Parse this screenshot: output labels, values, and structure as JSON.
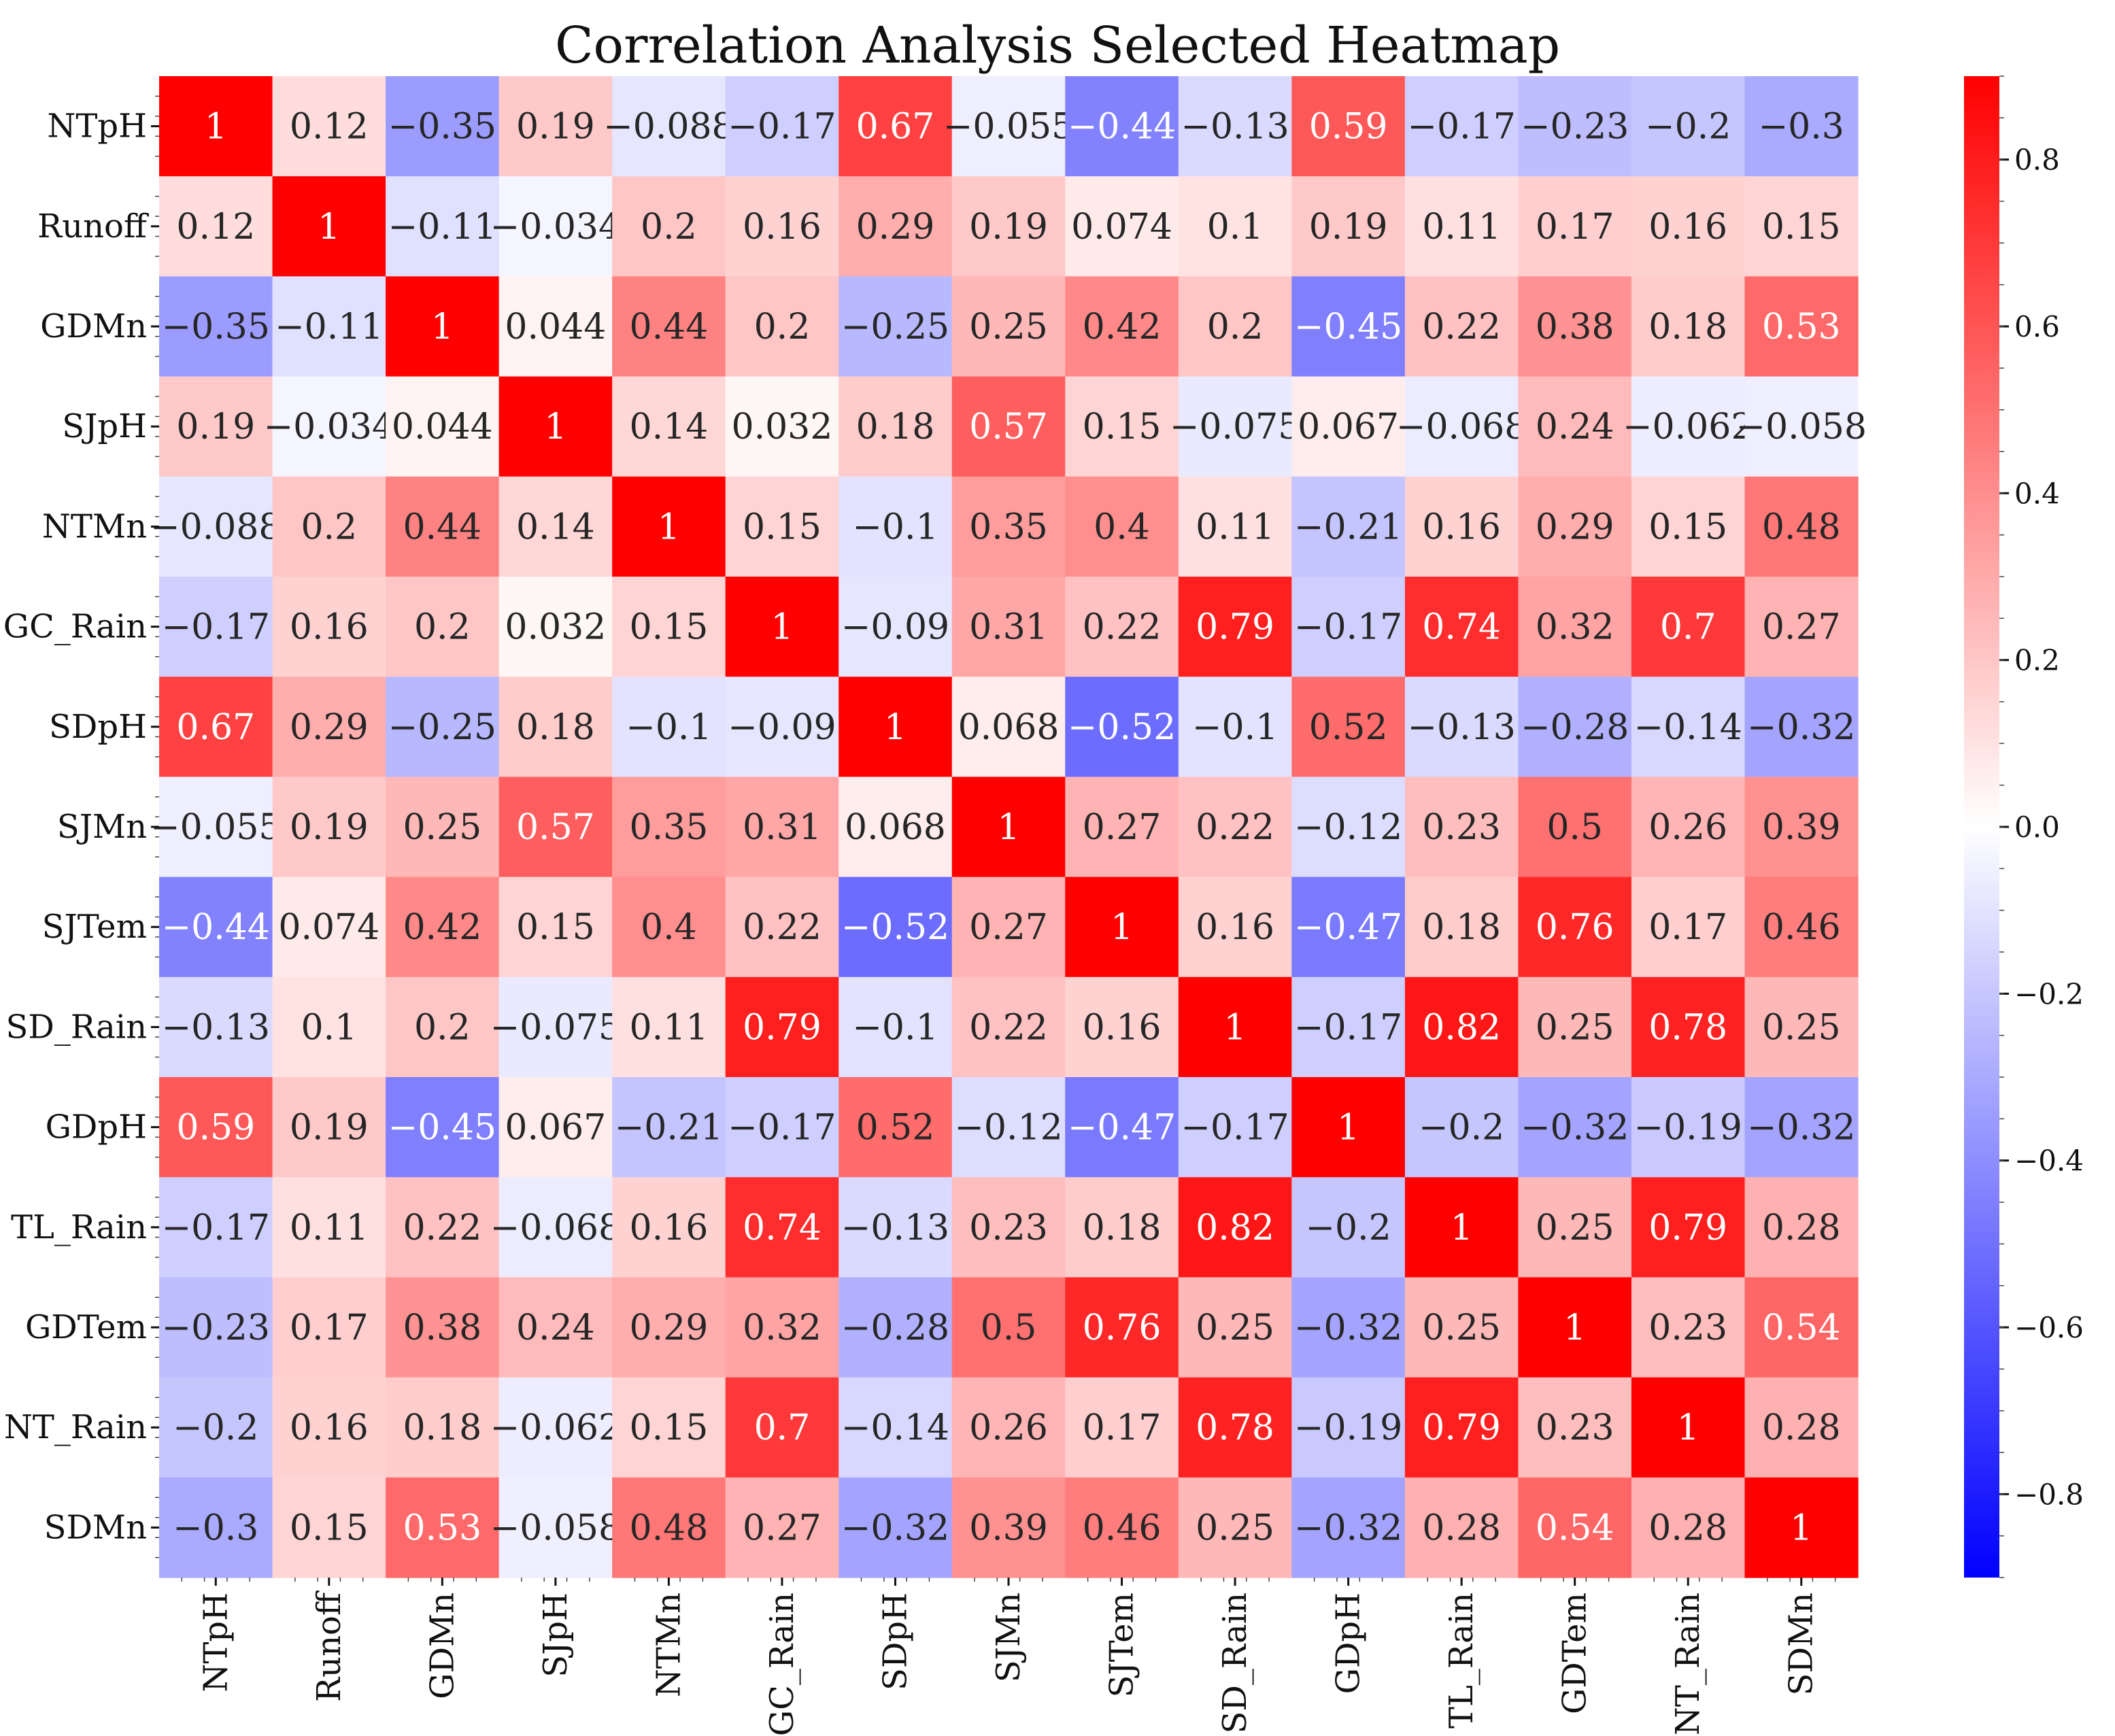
{
  "chart_data": {
    "type": "heatmap",
    "title": "Correlation Analysis Selected Heatmap",
    "row_labels": [
      "NTpH",
      "Runoff",
      "GDMn",
      "SJpH",
      "NTMn",
      "GC_Rain",
      "SDpH",
      "SJMn",
      "SJTem",
      "SD_Rain",
      "GDpH",
      "TL_Rain",
      "GDTem",
      "NT_Rain",
      "SDMn"
    ],
    "col_labels": [
      "NTpH",
      "Runoff",
      "GDMn",
      "SJpH",
      "NTMn",
      "GC_Rain",
      "SDpH",
      "SJMn",
      "SJTem",
      "SD_Rain",
      "GDpH",
      "TL_Rain",
      "GDTem",
      "NT_Rain",
      "SDMn"
    ],
    "values": [
      [
        1,
        0.12,
        -0.35,
        0.19,
        -0.088,
        -0.17,
        0.67,
        -0.055,
        -0.44,
        -0.13,
        0.59,
        -0.17,
        -0.23,
        -0.2,
        -0.3
      ],
      [
        0.12,
        1,
        -0.11,
        -0.034,
        0.2,
        0.16,
        0.29,
        0.19,
        0.074,
        0.1,
        0.19,
        0.11,
        0.17,
        0.16,
        0.15
      ],
      [
        -0.35,
        -0.11,
        1,
        0.044,
        0.44,
        0.2,
        -0.25,
        0.25,
        0.42,
        0.2,
        -0.45,
        0.22,
        0.38,
        0.18,
        0.53
      ],
      [
        0.19,
        -0.034,
        0.044,
        1,
        0.14,
        0.032,
        0.18,
        0.57,
        0.15,
        -0.075,
        0.067,
        -0.068,
        0.24,
        -0.062,
        -0.058
      ],
      [
        -0.088,
        0.2,
        0.44,
        0.14,
        1,
        0.15,
        -0.1,
        0.35,
        0.4,
        0.11,
        -0.21,
        0.16,
        0.29,
        0.15,
        0.48
      ],
      [
        -0.17,
        0.16,
        0.2,
        0.032,
        0.15,
        1,
        -0.09,
        0.31,
        0.22,
        0.79,
        -0.17,
        0.74,
        0.32,
        0.7,
        0.27
      ],
      [
        0.67,
        0.29,
        -0.25,
        0.18,
        -0.1,
        -0.09,
        1,
        0.068,
        -0.52,
        -0.1,
        0.52,
        -0.13,
        -0.28,
        -0.14,
        -0.32
      ],
      [
        -0.055,
        0.19,
        0.25,
        0.57,
        0.35,
        0.31,
        0.068,
        1,
        0.27,
        0.22,
        -0.12,
        0.23,
        0.5,
        0.26,
        0.39
      ],
      [
        -0.44,
        0.074,
        0.42,
        0.15,
        0.4,
        0.22,
        -0.52,
        0.27,
        1,
        0.16,
        -0.47,
        0.18,
        0.76,
        0.17,
        0.46
      ],
      [
        -0.13,
        0.1,
        0.2,
        -0.075,
        0.11,
        0.79,
        -0.1,
        0.22,
        0.16,
        1,
        -0.17,
        0.82,
        0.25,
        0.78,
        0.25
      ],
      [
        0.59,
        0.19,
        -0.45,
        0.067,
        -0.21,
        -0.17,
        0.52,
        -0.12,
        -0.47,
        -0.17,
        1,
        -0.2,
        -0.32,
        -0.19,
        -0.32
      ],
      [
        -0.17,
        0.11,
        0.22,
        -0.068,
        0.16,
        0.74,
        -0.13,
        0.23,
        0.18,
        0.82,
        -0.2,
        1,
        0.25,
        0.79,
        0.28
      ],
      [
        -0.23,
        0.17,
        0.38,
        0.24,
        0.29,
        0.32,
        -0.28,
        0.5,
        0.76,
        0.25,
        -0.32,
        0.25,
        1,
        0.23,
        0.54
      ],
      [
        -0.2,
        0.16,
        0.18,
        -0.062,
        0.15,
        0.7,
        -0.14,
        0.26,
        0.17,
        0.78,
        -0.19,
        0.79,
        0.23,
        1,
        0.28
      ],
      [
        -0.3,
        0.15,
        0.53,
        -0.058,
        0.48,
        0.27,
        -0.32,
        0.39,
        0.46,
        0.25,
        -0.32,
        0.28,
        0.54,
        0.28,
        1
      ]
    ],
    "colormap": "bwr",
    "vmin": -0.9,
    "vmax": 0.9,
    "colorbar_ticks": [
      0.8,
      0.6,
      0.4,
      0.2,
      0.0,
      -0.2,
      -0.4,
      -0.6,
      -0.8
    ],
    "colorbar_tick_labels": [
      "0.8",
      "0.6",
      "0.4",
      "0.2",
      "0.0",
      "−0.2",
      "−0.4",
      "−0.6",
      "−0.8"
    ],
    "colors": {
      "low": "#0000ff",
      "mid": "#ffffff",
      "high": "#ff0000"
    }
  }
}
